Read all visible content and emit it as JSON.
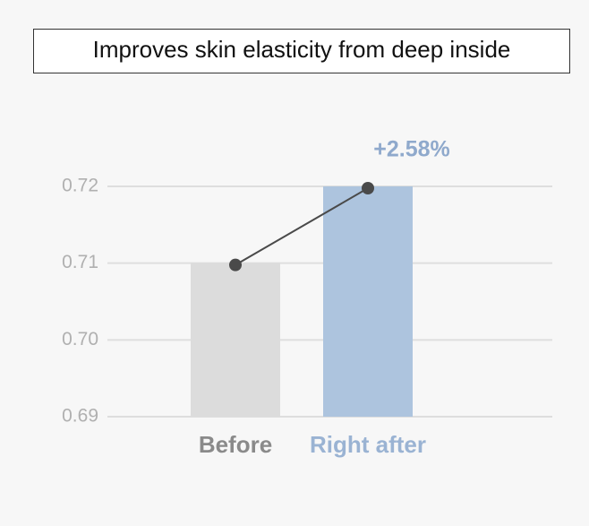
{
  "chart_data": {
    "type": "bar",
    "title": "Improves skin elasticity from deep inside",
    "categories": [
      "Before",
      "Right after"
    ],
    "values": [
      0.71,
      0.72
    ],
    "colors": [
      "#dcdcdc",
      "#adc4de"
    ],
    "label_colors": [
      "#8a8a8a",
      "#9ab3d3"
    ],
    "line_color": "#4a4a4a",
    "annotation": "+2.58%",
    "ylim": [
      0.69,
      0.72
    ],
    "yticks": [
      0.69,
      {
        "value": 0.7,
        "label": "0.70"
      },
      0.71,
      0.72
    ],
    "grid": true
  }
}
